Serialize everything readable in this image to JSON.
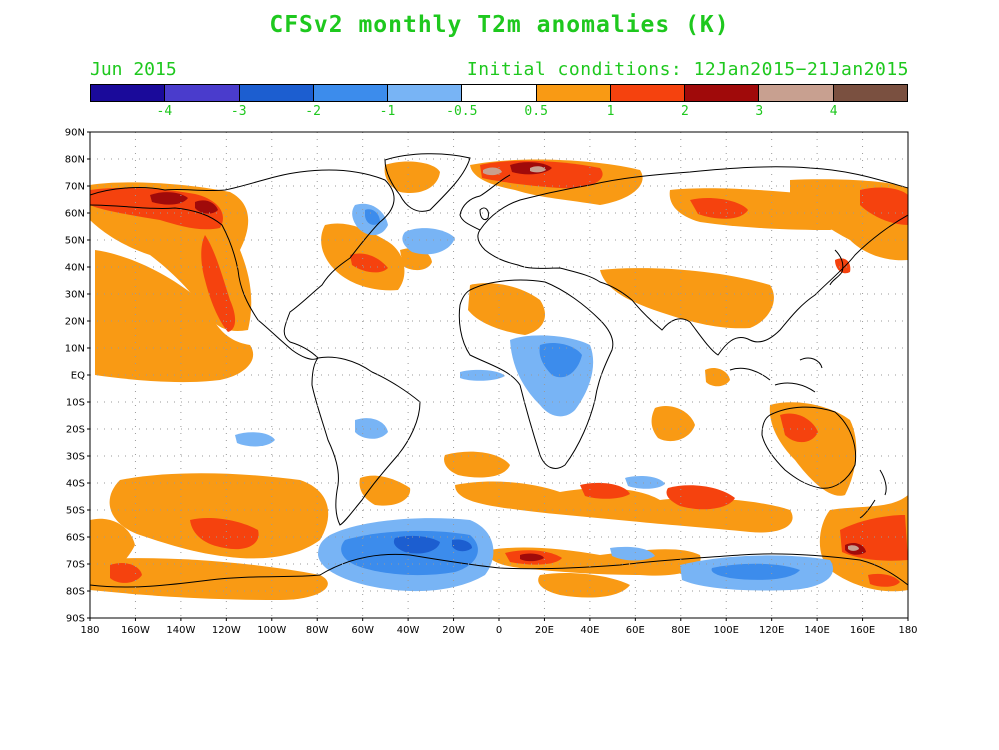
{
  "title": "CFSv2 monthly T2m anomalies (K)",
  "month_label": "Jun 2015",
  "initial_conditions": "Initial conditions: 12Jan2015−21Jan2015",
  "colorbar": {
    "colors": [
      "#1a0a9a",
      "#4a3ccc",
      "#1c5ed0",
      "#3c8cec",
      "#78b4f5",
      "#ffffff",
      "#f99a14",
      "#f5420e",
      "#a00a0a",
      "#c8a090",
      "#7a5040"
    ],
    "labels": [
      "-4",
      "-3",
      "-2",
      "-1",
      "-0.5",
      "0.5",
      "1",
      "2",
      "3",
      "4"
    ]
  },
  "map": {
    "lat_labels": [
      "90N",
      "80N",
      "70N",
      "60N",
      "50N",
      "40N",
      "30N",
      "20N",
      "10N",
      "EQ",
      "10S",
      "20S",
      "30S",
      "40S",
      "50S",
      "60S",
      "70S",
      "80S",
      "90S"
    ],
    "lon_labels": [
      "180",
      "160W",
      "140W",
      "120W",
      "100W",
      "80W",
      "60W",
      "40W",
      "20W",
      "0",
      "20E",
      "40E",
      "60E",
      "80E",
      "100E",
      "120E",
      "140E",
      "160E",
      "180"
    ],
    "anomaly_colors": {
      "neg2": "#1c5ed0",
      "neg1": "#3c8cec",
      "neg05": "#78b4f5",
      "pos05": "#f99a14",
      "pos1": "#f5420e",
      "pos2": "#a00a0a",
      "pos3": "#c8a090"
    }
  }
}
